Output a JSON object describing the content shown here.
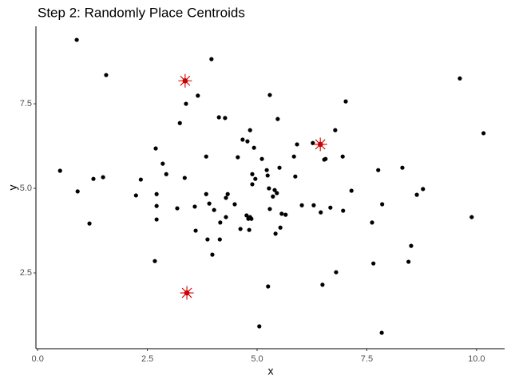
{
  "chart_data": {
    "type": "scatter",
    "title": "Step 2: Randomly Place Centroids",
    "x_label": "x",
    "y_label": "y",
    "xlim": [
      -0.04,
      10.64
    ],
    "ylim": [
      0.26,
      9.79
    ],
    "xticks": [
      {
        "value": 0,
        "label": "0.0"
      },
      2.5,
      {
        "value": 5,
        "label": "5.0"
      },
      7.5,
      {
        "value": 10,
        "label": "10.0"
      }
    ],
    "yticks": [
      2.5,
      {
        "value": 5,
        "label": "5.0"
      },
      7.5
    ],
    "grid": false,
    "series": [
      {
        "color": "#000000",
        "marker": "point",
        "x": [
          0.89,
          1.56,
          3.96,
          9.62,
          3.65,
          3.38,
          5.29,
          7.02,
          4.13,
          4.27,
          3.24,
          5.47,
          4.84,
          6.78,
          10.16,
          4.67,
          4.78,
          2.69,
          4.93,
          5.91,
          6.27,
          3.84,
          4.56,
          5.11,
          5.84,
          6.53,
          6.56,
          6.95,
          2.85,
          2.93,
          5.51,
          0.51,
          7.76,
          8.31,
          5.22,
          5.24,
          4.89,
          4.96,
          5.87,
          1.27,
          1.49,
          2.35,
          3.35,
          4.89,
          5.27,
          5.4,
          5.36,
          5.45,
          7.15,
          8.78,
          8.64,
          0.91,
          2.24,
          2.71,
          3.84,
          4.33,
          4.29,
          3.91,
          4.02,
          4.49,
          2.71,
          3.18,
          3.58,
          6.02,
          6.29,
          6.45,
          6.67,
          6.96,
          7.85,
          5.29,
          5.56,
          5.65,
          4.76,
          4.84,
          4.8,
          4.87,
          4.29,
          2.71,
          4.16,
          1.18,
          7.62,
          9.89,
          3.6,
          4.62,
          4.82,
          5.53,
          5.42,
          3.87,
          4.15,
          8.51,
          3.98,
          2.67,
          7.65,
          8.45,
          6.8,
          6.49,
          5.25,
          5.05,
          7.84
        ],
        "values": [
          9.39,
          8.35,
          8.82,
          8.25,
          7.74,
          7.5,
          7.76,
          7.57,
          7.1,
          7.08,
          6.93,
          7.05,
          6.72,
          6.72,
          6.63,
          6.44,
          6.39,
          6.18,
          6.2,
          6.3,
          6.34,
          5.94,
          5.92,
          5.87,
          5.94,
          5.85,
          5.87,
          5.94,
          5.73,
          5.42,
          5.61,
          5.52,
          5.54,
          5.61,
          5.54,
          5.38,
          5.42,
          5.28,
          5.35,
          5.28,
          5.33,
          5.26,
          5.31,
          5.12,
          5.0,
          4.95,
          4.76,
          4.86,
          4.93,
          4.98,
          4.81,
          4.91,
          4.79,
          4.83,
          4.83,
          4.83,
          4.72,
          4.55,
          4.36,
          4.53,
          4.48,
          4.41,
          4.46,
          4.5,
          4.5,
          4.29,
          4.43,
          4.34,
          4.53,
          4.39,
          4.25,
          4.22,
          4.2,
          4.15,
          4.1,
          4.1,
          4.15,
          4.08,
          3.99,
          3.96,
          3.99,
          4.15,
          3.75,
          3.8,
          3.77,
          3.84,
          3.66,
          3.49,
          3.49,
          3.3,
          3.04,
          2.85,
          2.78,
          2.83,
          2.52,
          2.15,
          2.1,
          0.92,
          0.73
        ]
      },
      {
        "color": "#cc0000",
        "marker": "asterisk",
        "x": [
          3.36,
          6.44,
          3.4
        ],
        "values": [
          8.18,
          6.3,
          1.91
        ]
      }
    ]
  }
}
